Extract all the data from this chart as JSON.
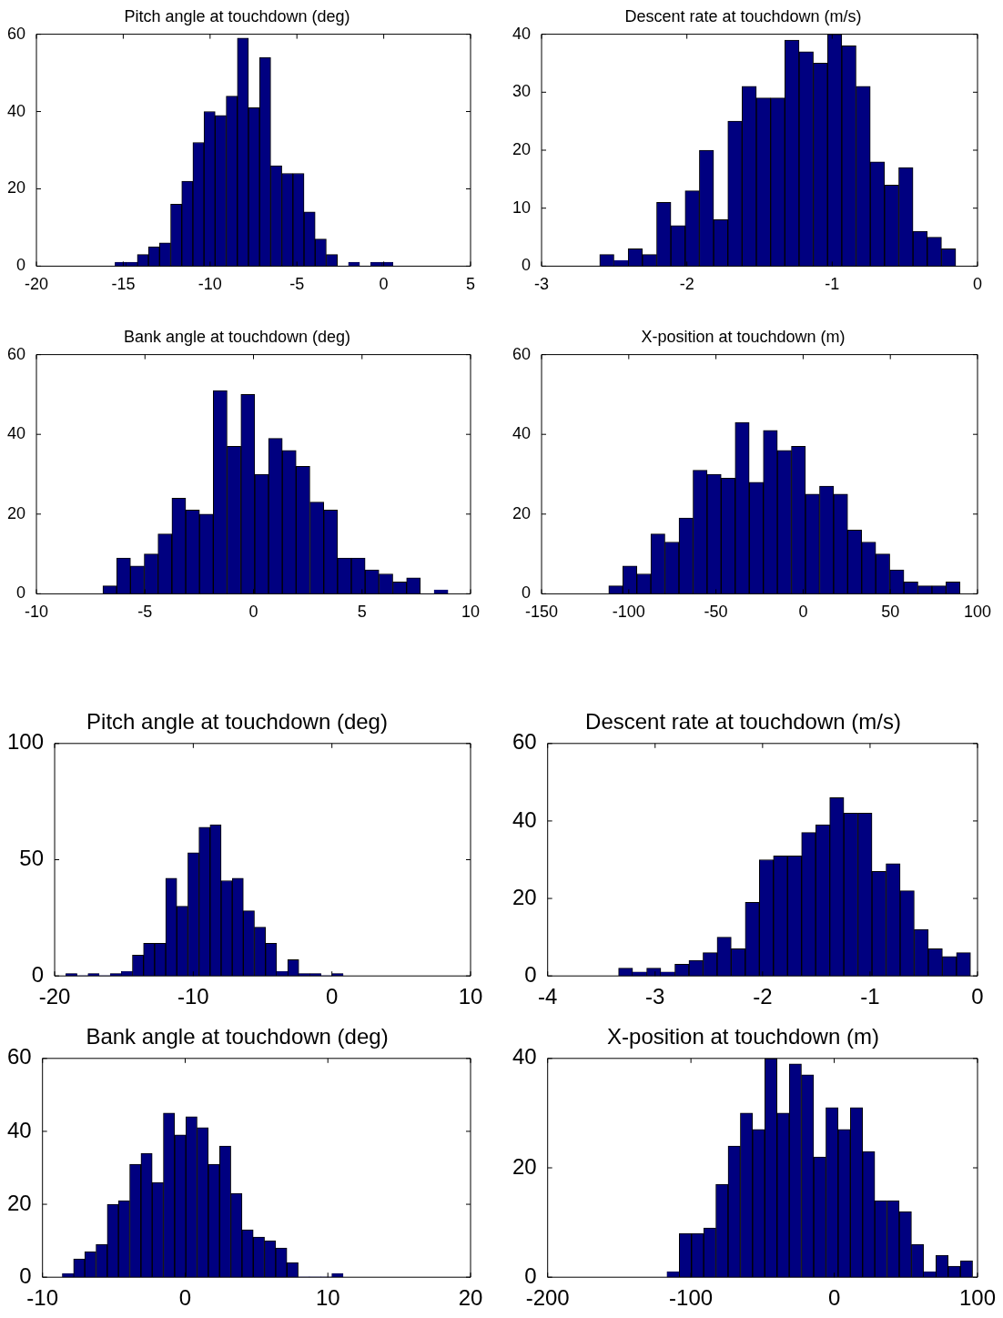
{
  "chart_data": [
    {
      "type": "histogram",
      "title": "Pitch angle at touchdown (deg)",
      "color": "#000080",
      "bins": [
        -15.47,
        -14.83,
        -14.19,
        -13.55,
        -12.91,
        -12.27,
        -11.63,
        -10.99,
        -10.35,
        -9.71,
        -9.07,
        -8.43,
        -7.79,
        -7.15,
        -6.51,
        -5.87,
        -5.23,
        -4.59,
        -3.95,
        -3.31,
        -2.67,
        -2.03,
        -1.39,
        -0.75,
        -0.11,
        0.53
      ],
      "values": [
        1,
        1,
        3,
        5,
        6,
        16,
        22,
        32,
        40,
        39,
        44,
        59,
        41,
        54,
        26,
        24,
        24,
        14,
        7,
        3,
        0,
        1,
        0,
        1,
        1
      ],
      "xlim": [
        -20,
        5
      ],
      "xticks": [
        -20,
        -15,
        -10,
        -5,
        0,
        5
      ],
      "ylim": [
        0,
        60
      ],
      "yticks": [
        0,
        20,
        40,
        60
      ]
    },
    {
      "type": "histogram",
      "title": "Descent rate at touchdown (m/s)",
      "color": "#000080",
      "bins": [
        -2.6,
        -2.502,
        -2.404,
        -2.306,
        -2.208,
        -2.11,
        -2.012,
        -1.914,
        -1.816,
        -1.718,
        -1.62,
        -1.522,
        -1.424,
        -1.326,
        -1.228,
        -1.13,
        -1.032,
        -0.934,
        -0.836,
        -0.738,
        -0.64,
        -0.542,
        -0.444,
        -0.346,
        -0.248,
        -0.15
      ],
      "values": [
        2,
        1,
        3,
        2,
        11,
        7,
        13,
        20,
        8,
        25,
        31,
        29,
        29,
        39,
        37,
        35,
        40,
        38,
        31,
        18,
        14,
        17,
        6,
        5,
        3
      ],
      "xlim": [
        -3,
        0
      ],
      "xticks": [
        -3,
        -2,
        -1,
        0
      ],
      "ylim": [
        0,
        40
      ],
      "yticks": [
        0,
        10,
        20,
        30,
        40
      ]
    },
    {
      "type": "histogram",
      "title": "Bank angle at touchdown (deg)",
      "color": "#000080",
      "bins": [
        -6.94,
        -6.3,
        -5.67,
        -5.03,
        -4.4,
        -3.76,
        -3.12,
        -2.49,
        -1.85,
        -1.22,
        -0.58,
        0.06,
        0.69,
        1.33,
        1.96,
        2.6,
        3.24,
        3.87,
        4.51,
        5.14,
        5.78,
        6.42,
        7.05,
        7.69,
        8.32,
        8.96
      ],
      "values": [
        2,
        9,
        7,
        10,
        15,
        24,
        21,
        20,
        51,
        37,
        50,
        30,
        39,
        36,
        32,
        23,
        21,
        9,
        9,
        6,
        5,
        3,
        4,
        0,
        1
      ],
      "xlim": [
        -10,
        10
      ],
      "xticks": [
        -10,
        -5,
        0,
        5,
        10
      ],
      "ylim": [
        0,
        60
      ],
      "yticks": [
        0,
        20,
        40,
        60
      ]
    },
    {
      "type": "histogram",
      "title": "X-position at touchdown (m)",
      "color": "#000080",
      "bins": [
        -111.5,
        -103.4,
        -95.4,
        -87.3,
        -79.3,
        -71.2,
        -63.1,
        -55.1,
        -47,
        -39,
        -30.9,
        -22.8,
        -14.8,
        -6.7,
        1.3,
        9.4,
        17.5,
        25.5,
        33.6,
        41.6,
        49.7,
        57.8,
        65.8,
        73.9,
        81.9,
        90
      ],
      "values": [
        2,
        7,
        5,
        15,
        13,
        19,
        31,
        30,
        29,
        43,
        28,
        41,
        36,
        37,
        25,
        27,
        25,
        16,
        13,
        10,
        6,
        3,
        2,
        2,
        3
      ],
      "xlim": [
        -150,
        100
      ],
      "xticks": [
        -150,
        -100,
        -50,
        0,
        50,
        100
      ],
      "ylim": [
        0,
        60
      ],
      "yticks": [
        0,
        20,
        40,
        60
      ]
    },
    {
      "type": "histogram",
      "title": "Pitch angle at touchdown (deg)",
      "color": "#000080",
      "bins": [
        -19.19,
        -18.39,
        -17.59,
        -16.79,
        -15.99,
        -15.19,
        -14.39,
        -13.59,
        -12.79,
        -11.99,
        -11.19,
        -10.39,
        -9.59,
        -8.79,
        -7.99,
        -7.19,
        -6.39,
        -5.59,
        -4.79,
        -3.99,
        -3.19,
        -2.39,
        -1.59,
        -0.79,
        0.01,
        0.81
      ],
      "values": [
        1,
        0,
        1,
        0,
        1,
        2,
        9,
        14,
        14,
        42,
        30,
        53,
        64,
        65,
        41,
        42,
        28,
        21,
        14,
        2,
        7,
        1,
        1,
        0,
        1
      ],
      "xlim": [
        -20,
        10
      ],
      "xticks": [
        -20,
        -10,
        0,
        10
      ],
      "ylim": [
        0,
        100
      ],
      "yticks": [
        0,
        50,
        100
      ]
    },
    {
      "type": "histogram",
      "title": "Descent rate at touchdown (m/s)",
      "color": "#000080",
      "bins": [
        -3.34,
        -3.209,
        -3.078,
        -2.947,
        -2.816,
        -2.685,
        -2.554,
        -2.423,
        -2.292,
        -2.161,
        -2.03,
        -1.899,
        -1.768,
        -1.637,
        -1.506,
        -1.375,
        -1.244,
        -1.113,
        -0.982,
        -0.851,
        -0.72,
        -0.589,
        -0.458,
        -0.327,
        -0.196,
        -0.065
      ],
      "values": [
        2,
        1,
        2,
        1,
        3,
        4,
        6,
        10,
        7,
        19,
        30,
        31,
        31,
        37,
        39,
        46,
        42,
        42,
        27,
        29,
        22,
        12,
        7,
        5,
        6
      ],
      "xlim": [
        -4,
        0
      ],
      "xticks": [
        -4,
        -3,
        -2,
        -1,
        0
      ],
      "ylim": [
        0,
        60
      ],
      "yticks": [
        0,
        20,
        40,
        60
      ]
    },
    {
      "type": "histogram",
      "title": "Bank angle at touchdown (deg)",
      "color": "#000080",
      "bins": [
        -8.61,
        -7.82,
        -7.04,
        -6.25,
        -5.46,
        -4.68,
        -3.89,
        -3.1,
        -2.31,
        -1.53,
        -0.74,
        0.05,
        0.83,
        1.62,
        2.41,
        3.2,
        3.98,
        4.77,
        5.56,
        6.34,
        7.13,
        7.92,
        8.7,
        9.49,
        10.28,
        11.07
      ],
      "values": [
        1,
        5,
        7,
        9,
        20,
        21,
        31,
        34,
        26,
        45,
        39,
        44,
        41,
        31,
        36,
        23,
        13,
        11,
        10,
        8,
        4,
        0,
        0,
        0,
        1
      ],
      "xlim": [
        -10,
        20
      ],
      "xticks": [
        -10,
        0,
        10,
        20
      ],
      "ylim": [
        0,
        60
      ],
      "yticks": [
        0,
        20,
        40,
        60
      ]
    },
    {
      "type": "histogram",
      "title": "X-position at touchdown (m)",
      "color": "#000080",
      "bins": [
        -116.7,
        -108.2,
        -99.6,
        -91.1,
        -82.6,
        -74.1,
        -65.5,
        -57,
        -48.5,
        -39.9,
        -31.4,
        -22.9,
        -14.3,
        -5.8,
        2.7,
        11.3,
        19.8,
        28.3,
        36.8,
        45.4,
        53.9,
        62.4,
        71,
        79.5,
        88,
        96.6
      ],
      "values": [
        1,
        8,
        8,
        9,
        17,
        24,
        30,
        27,
        40,
        30,
        39,
        37,
        22,
        31,
        27,
        31,
        23,
        14,
        14,
        12,
        6,
        1,
        4,
        2,
        3
      ],
      "xlim": [
        -200,
        100
      ],
      "xticks": [
        -200,
        -100,
        0,
        100
      ],
      "ylim": [
        0,
        40
      ],
      "yticks": [
        0,
        20,
        40
      ]
    }
  ]
}
